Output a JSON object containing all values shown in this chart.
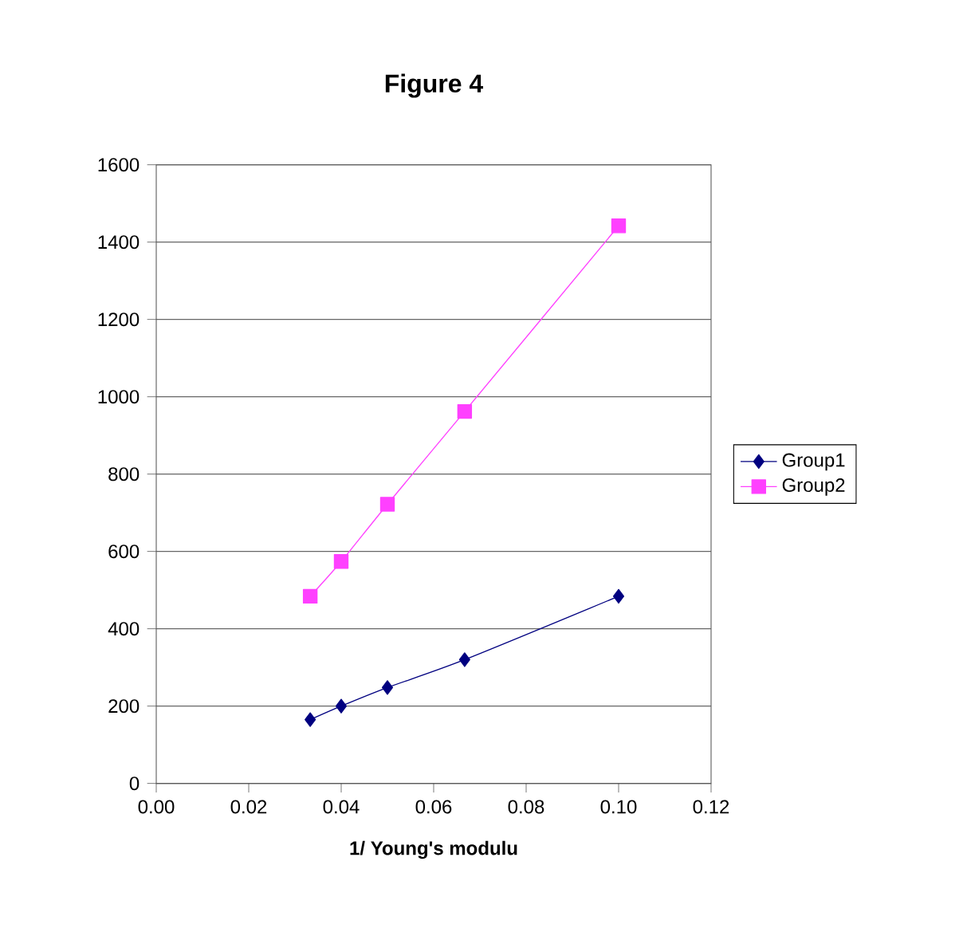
{
  "chart_data": {
    "type": "line",
    "title": "Figure 4",
    "xlabel": "1/  Young's  modulu",
    "xlim": [
      0,
      0.12
    ],
    "xticks": [
      {
        "value": 0,
        "label": "0.00"
      },
      {
        "value": 0.02,
        "label": "0.02"
      },
      {
        "value": 0.04,
        "label": "0.04"
      },
      {
        "value": 0.06,
        "label": "0.06"
      },
      {
        "value": 0.08,
        "label": "0.08"
      },
      {
        "value": 0.1,
        "label": "0.10"
      },
      {
        "value": 0.12,
        "label": "0.12"
      }
    ],
    "ylim": [
      0,
      1600
    ],
    "yticks": [
      0,
      200,
      400,
      600,
      800,
      1000,
      1200,
      1400,
      1600
    ],
    "grid": "y",
    "legend": "right",
    "x": [
      0.0333,
      0.04,
      0.05,
      0.0667,
      0.1
    ],
    "series": [
      {
        "name": "Group1",
        "color": "#000080",
        "marker": "diamond",
        "values": [
          165,
          200,
          248,
          320,
          484
        ]
      },
      {
        "name": "Group2",
        "color": "#ff40ff",
        "marker": "square",
        "values": [
          484,
          574,
          722,
          962,
          1442
        ]
      }
    ]
  }
}
